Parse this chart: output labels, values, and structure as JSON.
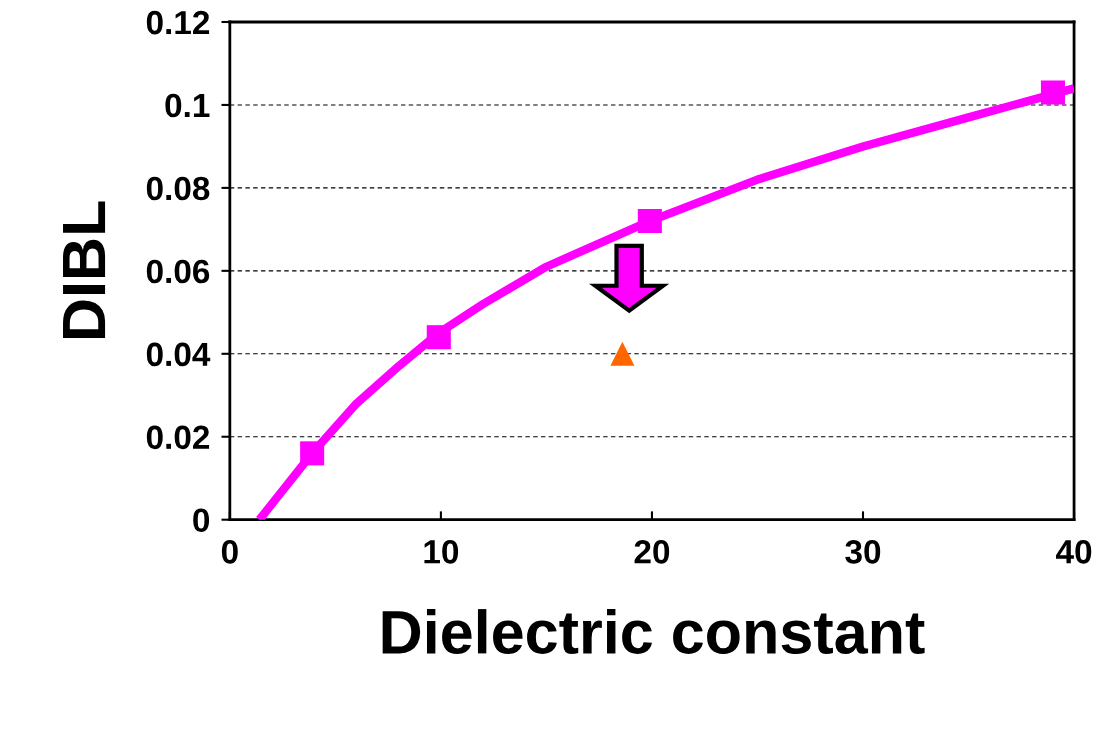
{
  "chart_data": {
    "type": "line",
    "xlabel": "Dielectric constant",
    "ylabel": "DIBL",
    "xlim": [
      0,
      40
    ],
    "xticks": [
      0,
      10,
      20,
      30,
      40
    ],
    "ylim": [
      0,
      0.12
    ],
    "yticks": [
      0,
      0.02,
      0.04,
      0.06,
      0.08,
      0.1,
      0.12
    ],
    "grid": "y",
    "legend": false,
    "series": [
      {
        "color": "#ff00ff",
        "marker": "none",
        "x": [
          1.4,
          3.9,
          6,
          8,
          9.9,
          12,
          15,
          19.9,
          25,
          30,
          35,
          40
        ],
        "values": [
          0,
          0.016,
          0.028,
          0.037,
          0.045,
          0.052,
          0.061,
          0.072,
          0.082,
          0.09,
          0.097,
          0.104
        ]
      },
      {
        "type": "scatter",
        "color": "#ff00ff",
        "marker": "square",
        "x": [
          3.9,
          9.9,
          19.9,
          39
        ],
        "values": [
          0.016,
          0.044,
          0.072,
          0.103
        ]
      },
      {
        "type": "scatter",
        "color": "#ff6600",
        "marker": "triangle",
        "x": [
          18.6
        ],
        "values": [
          0.04
        ]
      }
    ]
  }
}
